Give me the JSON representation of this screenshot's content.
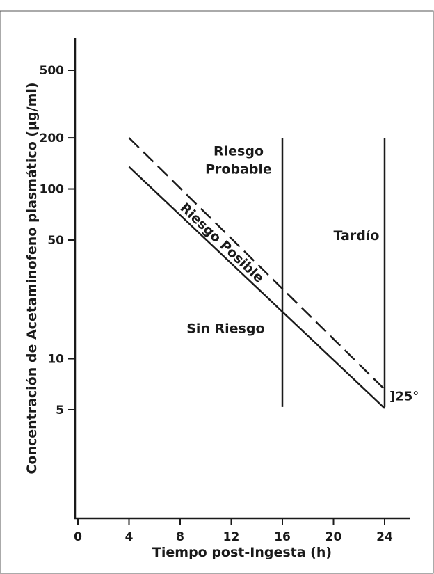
{
  "chart_data": {
    "type": "line",
    "xlabel": "Tiempo post-Ingesta (h)",
    "ylabel": "Concentración de Acetaminofeno plasmático (µg/ml)",
    "x_ticks": [
      0,
      4,
      8,
      12,
      16,
      20,
      24
    ],
    "y_ticks": [
      5,
      10,
      50,
      100,
      200,
      500
    ],
    "y_scale": "log",
    "xlim": [
      0,
      26
    ],
    "ylim": [
      1.8,
      850
    ],
    "grid": false,
    "series": [
      {
        "style": "dashed",
        "x": [
          4,
          24
        ],
        "y": [
          200,
          6.6
        ]
      },
      {
        "style": "solid",
        "x": [
          4,
          24
        ],
        "y": [
          135,
          5.1
        ]
      }
    ],
    "vertical_lines": [
      {
        "x": 16,
        "y_range": [
          5.2,
          200
        ]
      },
      {
        "x": 24,
        "y_range": [
          5.2,
          200
        ]
      }
    ],
    "regions": [
      {
        "id": "probable",
        "lines": [
          "Riesgo",
          "Probable"
        ],
        "x": 16,
        "y": 130,
        "anchor": "end"
      },
      {
        "id": "tardio",
        "lines": [
          "Tardío"
        ],
        "x": 20,
        "y": 53
      },
      {
        "id": "sin-riesgo",
        "lines": [
          "Sin Riesgo"
        ],
        "x": 8.5,
        "y": 15
      }
    ],
    "rotated_label": {
      "text": "Riesgo Posible",
      "x": 9.8,
      "y": 48
    },
    "annotation": {
      "text": "]25°",
      "x": 24.4,
      "y": 5.8
    }
  }
}
